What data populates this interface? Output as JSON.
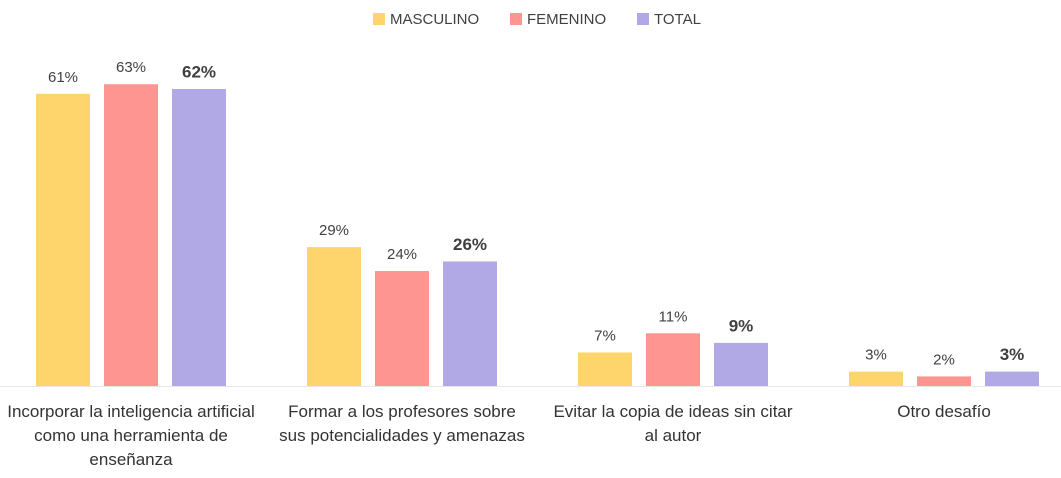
{
  "chart_data": {
    "type": "bar",
    "categories": [
      "Incorporar la inteligencia artificial como una herramienta de enseñanza",
      "Formar a los profesores sobre sus potencialidades y amenazas",
      "Evitar la copia de ideas sin citar al autor",
      "Otro desafío"
    ],
    "series": [
      {
        "name": "MASCULINO",
        "color": "#fed56d",
        "values": [
          61,
          29,
          7,
          3
        ],
        "value_labels": [
          "61%",
          "29%",
          "7%",
          "3%"
        ]
      },
      {
        "name": "FEMENINO",
        "color": "#fe9590",
        "values": [
          63,
          24,
          11,
          2
        ],
        "value_labels": [
          "63%",
          "24%",
          "11%",
          "2%"
        ]
      },
      {
        "name": "TOTAL",
        "color": "#b1a8e6",
        "values": [
          62,
          26,
          9,
          3
        ],
        "value_labels": [
          "62%",
          "26%",
          "9%",
          "3%"
        ]
      }
    ]
  }
}
